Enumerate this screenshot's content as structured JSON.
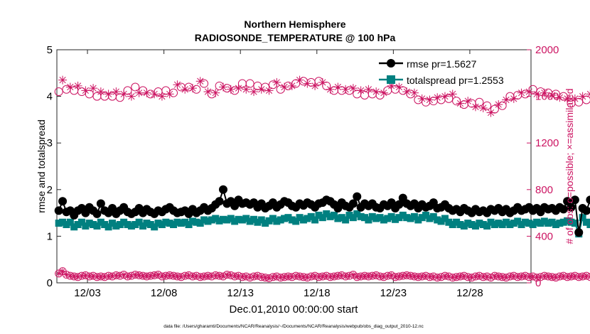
{
  "chart_data": {
    "type": "line",
    "title_line1": "Northern Hemisphere",
    "title_line2": "RADIOSONDE_TEMPERATURE @ 100 hPa",
    "xlabel": "Dec.01,2010 00:00:00 start",
    "ylabel_left": "rmse and totalspread",
    "ylabel_right": "# of obs: o=possible; ×=assimilated",
    "footnote": "data file: /Users/gharamti/Documents/NCAR/Reanalysis/~/Documents/NCAR/Reanalysis/webpub/obs_diag_output_2010-12.nc",
    "x_ticks": [
      {
        "day": 3,
        "label": "12/03"
      },
      {
        "day": 8,
        "label": "12/08"
      },
      {
        "day": 13,
        "label": "12/13"
      },
      {
        "day": 18,
        "label": "12/18"
      },
      {
        "day": 23,
        "label": "12/23"
      },
      {
        "day": 28,
        "label": "12/28"
      }
    ],
    "xlim_days": [
      1,
      32
    ],
    "ylim_left": [
      0,
      5
    ],
    "yticks_left": [
      "0",
      "1",
      "2",
      "3",
      "4",
      "5"
    ],
    "ylim_right": [
      0,
      2000
    ],
    "yticks_right": [
      "0",
      "400",
      "800",
      "1200",
      "1600",
      "2000"
    ],
    "time_step_days": 0.25,
    "colors": {
      "rmse": "#000000",
      "spread": "#008080",
      "obs": "#CC1462",
      "axis": "#262626"
    },
    "series": [
      {
        "name": "rmse",
        "legend_label": "rmse pr=1.5627",
        "axis": "left",
        "marker": "filled-circle",
        "values": [
          1.55,
          1.75,
          1.52,
          1.55,
          1.45,
          1.55,
          1.6,
          1.5,
          1.62,
          1.55,
          1.48,
          1.7,
          1.55,
          1.5,
          1.6,
          1.48,
          1.55,
          1.62,
          1.52,
          1.48,
          1.52,
          1.6,
          1.5,
          1.58,
          1.52,
          1.48,
          1.55,
          1.52,
          1.58,
          1.62,
          1.55,
          1.5,
          1.52,
          1.55,
          1.48,
          1.58,
          1.5,
          1.55,
          1.62,
          1.55,
          1.6,
          1.68,
          1.75,
          2.0,
          1.7,
          1.75,
          1.65,
          1.78,
          1.7,
          1.72,
          1.68,
          1.72,
          1.62,
          1.7,
          1.6,
          1.65,
          1.72,
          1.62,
          1.68,
          1.75,
          1.72,
          1.65,
          1.62,
          1.7,
          1.66,
          1.72,
          1.68,
          1.62,
          1.7,
          1.72,
          1.78,
          1.75,
          1.68,
          1.6,
          1.72,
          1.65,
          1.62,
          1.7,
          1.85,
          1.62,
          1.7,
          1.65,
          1.7,
          1.62,
          1.6,
          1.68,
          1.65,
          1.72,
          1.6,
          1.68,
          1.82,
          1.7,
          1.65,
          1.7,
          1.6,
          1.68,
          1.62,
          1.65,
          1.72,
          1.6,
          1.62,
          1.68,
          1.6,
          1.55,
          1.58,
          1.52,
          1.6,
          1.55,
          1.5,
          1.58,
          1.52,
          1.55,
          1.5,
          1.58,
          1.55,
          1.6,
          1.52,
          1.58,
          1.5,
          1.55,
          1.62,
          1.55,
          1.58,
          1.62,
          1.55,
          1.6,
          1.52,
          1.62,
          1.58,
          1.6,
          1.55,
          1.62,
          1.58,
          1.75,
          1.62,
          1.78,
          1.08,
          1.6,
          1.55,
          1.78,
          1.6,
          1.62,
          1.55,
          1.6,
          1.52,
          1.48,
          1.58,
          1.7
        ]
      },
      {
        "name": "totalspread",
        "legend_label": "totalspread pr=1.2553",
        "axis": "left",
        "marker": "filled-square",
        "values": [
          1.28,
          1.3,
          1.25,
          1.3,
          1.2,
          1.25,
          1.3,
          1.22,
          1.28,
          1.25,
          1.22,
          1.3,
          1.25,
          1.2,
          1.28,
          1.22,
          1.25,
          1.3,
          1.25,
          1.22,
          1.25,
          1.3,
          1.22,
          1.28,
          1.25,
          1.2,
          1.28,
          1.25,
          1.3,
          1.28,
          1.25,
          1.3,
          1.28,
          1.3,
          1.25,
          1.32,
          1.3,
          1.28,
          1.35,
          1.32,
          1.35,
          1.38,
          1.33,
          1.36,
          1.35,
          1.38,
          1.32,
          1.36,
          1.35,
          1.38,
          1.32,
          1.36,
          1.3,
          1.35,
          1.28,
          1.33,
          1.38,
          1.32,
          1.35,
          1.38,
          1.4,
          1.35,
          1.32,
          1.4,
          1.35,
          1.38,
          1.42,
          1.35,
          1.45,
          1.4,
          1.48,
          1.42,
          1.45,
          1.38,
          1.4,
          1.35,
          1.45,
          1.4,
          1.48,
          1.42,
          1.4,
          1.35,
          1.42,
          1.38,
          1.4,
          1.35,
          1.38,
          1.42,
          1.36,
          1.4,
          1.45,
          1.4,
          1.38,
          1.42,
          1.35,
          1.4,
          1.45,
          1.38,
          1.42,
          1.35,
          1.32,
          1.38,
          1.3,
          1.25,
          1.3,
          1.25,
          1.22,
          1.28,
          1.25,
          1.22,
          1.28,
          1.25,
          1.22,
          1.3,
          1.25,
          1.28,
          1.25,
          1.3,
          1.25,
          1.28,
          1.32,
          1.25,
          1.3,
          1.28,
          1.25,
          1.3,
          1.28,
          1.32,
          1.28,
          1.3,
          1.25,
          1.28,
          1.3,
          1.33,
          1.3,
          1.28,
          1.05,
          1.4,
          1.3,
          1.25,
          1.3,
          1.28,
          1.25,
          1.3,
          1.25,
          1.22,
          1.28,
          1.2
        ]
      },
      {
        "name": "obs_possible",
        "legend_label": "",
        "axis": "right",
        "marker": "open-circle-and-asterisk",
        "values_day_top": [
          1640,
          1740,
          1660,
          1680,
          1650,
          1690,
          1640,
          1650,
          1620,
          1670,
          1600,
          1640,
          1600,
          1620,
          1600,
          1640,
          1590,
          1620,
          1650,
          1600,
          1680,
          1630,
          1650,
          1630,
          1620,
          1620,
          1640,
          1600,
          1650,
          1620,
          1630,
          1700,
          1680,
          1660,
          1680,
          1670,
          1660,
          1730,
          1710,
          1640,
          1620,
          1630,
          1690,
          1680,
          1670,
          1660,
          1650,
          1670,
          1710,
          1660,
          1710,
          1640,
          1690,
          1660,
          1680,
          1650,
          1700,
          1720,
          1660,
          1680,
          1690,
          1690,
          1710,
          1740,
          1730,
          1710,
          1720,
          1690,
          1730,
          1720,
          1690,
          1660,
          1650,
          1680,
          1650,
          1660,
          1650,
          1670,
          1620,
          1650,
          1610,
          1660,
          1620,
          1640,
          1610,
          1630,
          1650,
          1690,
          1660,
          1680,
          1650,
          1640,
          1620,
          1630,
          1570,
          1580,
          1550,
          1570,
          1560,
          1590,
          1570,
          1600,
          1580,
          1620,
          1560,
          1540,
          1530,
          1560,
          1540,
          1510,
          1550,
          1500,
          1520,
          1460,
          1490,
          1530,
          1520,
          1570,
          1600,
          1580,
          1610,
          1630,
          1620,
          1640,
          1660,
          1620,
          1640,
          1630,
          1630,
          1610,
          1620,
          1590,
          1600,
          1580,
          1540,
          1580,
          1550,
          1600,
          1570,
          1620
        ]
      }
    ],
    "obs_assimilated_low": [
      80,
      100,
      70,
      60,
      55,
      50,
      60,
      65,
      55,
      60,
      50,
      55,
      50,
      60,
      55,
      65,
      60,
      70,
      55,
      60,
      70,
      65,
      60,
      55,
      60,
      65,
      70,
      55,
      60,
      65,
      60,
      55,
      50,
      60,
      65,
      55,
      60,
      50,
      55,
      60,
      55,
      65,
      60,
      55,
      70,
      65,
      55,
      60,
      50,
      55,
      45,
      55,
      60,
      50,
      45,
      40,
      50,
      55,
      45,
      50,
      55,
      50,
      60,
      55,
      50,
      45,
      55,
      60,
      50,
      55,
      60,
      50,
      55,
      60,
      65,
      55,
      60,
      70,
      50,
      55,
      60,
      55,
      60,
      65,
      55,
      50,
      60,
      65,
      50,
      55,
      60,
      65,
      60,
      55,
      50,
      55,
      60,
      50,
      55,
      45,
      50,
      60,
      55,
      45,
      50,
      55,
      60,
      50,
      45,
      55,
      60,
      50,
      55,
      45,
      60,
      55,
      50,
      45,
      55,
      60,
      50,
      55,
      60,
      50,
      55,
      45,
      50,
      60,
      55,
      50,
      45,
      55,
      60,
      50,
      55,
      60,
      50,
      55,
      60,
      50,
      45,
      55,
      60,
      65,
      80,
      100
    ]
  }
}
